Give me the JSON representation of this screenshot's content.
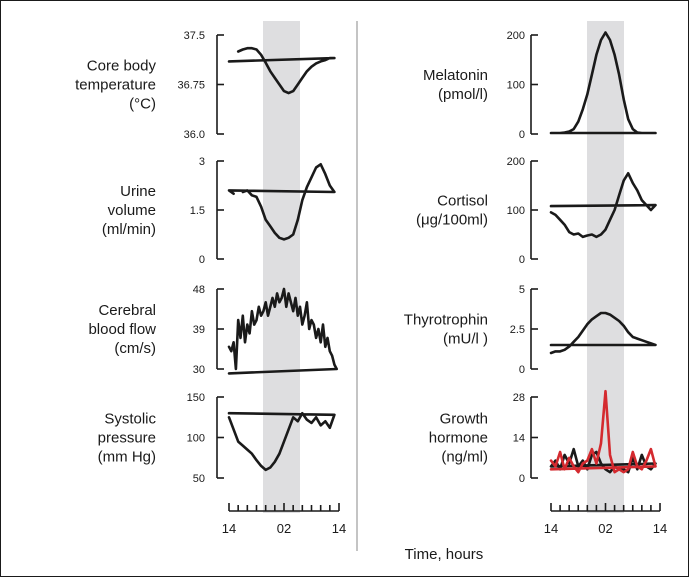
{
  "figure": {
    "time_axis_label": "Time, hours",
    "night_band": [
      22,
      6
    ],
    "colors": {
      "line": "#1a1a1a",
      "band": "#dedee0",
      "red": "#d42a2f"
    }
  },
  "chart_data": [
    {
      "type": "line",
      "label_lines": [
        "Core body",
        "temperature",
        "(°C)"
      ],
      "yticks": [
        "37.5",
        "36.75",
        "36.0"
      ],
      "ylim": [
        36.0,
        37.5
      ],
      "x": [
        16,
        17,
        18,
        19,
        20,
        21,
        22,
        23,
        0,
        1,
        2,
        3,
        4,
        5,
        6,
        7,
        8,
        9,
        10,
        11,
        12,
        13,
        14,
        15
      ],
      "series": [
        {
          "color": "#1a1a1a",
          "values": [
            37.25,
            37.28,
            37.3,
            37.3,
            37.28,
            37.2,
            37.08,
            36.95,
            36.85,
            36.75,
            36.65,
            36.62,
            36.65,
            36.75,
            36.85,
            36.95,
            37.02,
            37.07,
            37.1,
            37.12,
            37.15,
            37.15,
            37.1,
            null
          ]
        }
      ]
    },
    {
      "type": "line",
      "label_lines": [
        "Urine",
        "volume",
        "(ml/min)"
      ],
      "yticks": [
        "3",
        "1.5",
        "0"
      ],
      "ylim": [
        0,
        3
      ],
      "x": [
        17,
        18,
        19,
        20,
        21,
        22,
        23,
        0,
        1,
        2,
        3,
        4,
        5,
        6,
        7,
        8,
        9,
        10,
        11,
        12,
        13,
        14,
        15
      ],
      "series": [
        {
          "color": "#1a1a1a",
          "values": [
            2.05,
            2.1,
            1.95,
            1.9,
            1.6,
            1.2,
            1.0,
            0.8,
            0.65,
            0.6,
            0.65,
            0.75,
            1.2,
            1.8,
            2.2,
            2.5,
            2.8,
            2.9,
            2.6,
            2.25,
            2.05,
            2.1,
            2.0
          ]
        }
      ]
    },
    {
      "type": "line",
      "label_lines": [
        "Cerebral",
        "blood flow",
        "(cm/s)"
      ],
      "yticks": [
        "48",
        "39",
        "30"
      ],
      "ylim": [
        30,
        48
      ],
      "x": [
        14,
        14.5,
        15,
        15.5,
        16,
        16.5,
        17,
        17.5,
        18,
        18.5,
        19,
        19.5,
        20,
        20.5,
        21,
        21.5,
        22,
        22.5,
        23,
        23.5,
        0,
        0.5,
        1,
        1.5,
        2,
        2.5,
        3,
        3.5,
        4,
        4.5,
        5,
        5.5,
        6,
        6.5,
        7,
        7.5,
        8,
        8.5,
        9,
        9.5,
        10,
        10.5,
        11,
        11.5,
        12,
        12.5,
        13,
        13.5,
        14
      ],
      "series": [
        {
          "color": "#1a1a1a",
          "values": [
            35,
            34,
            36,
            30,
            41,
            37,
            42,
            36,
            40,
            38,
            43,
            40,
            41,
            44,
            42,
            43,
            45,
            42,
            44,
            46,
            44,
            47,
            45,
            46,
            48,
            44,
            47,
            45,
            43,
            46,
            42,
            44,
            40,
            42,
            45,
            39,
            41,
            40,
            37,
            39,
            36,
            40,
            35,
            37,
            34,
            33,
            31,
            30,
            29
          ]
        }
      ]
    },
    {
      "type": "line",
      "label_lines": [
        "Systolic",
        "pressure",
        "(mm Hg)"
      ],
      "yticks": [
        "150",
        "100",
        "50"
      ],
      "ylim": [
        50,
        150
      ],
      "x": [
        14,
        15,
        16,
        17,
        18,
        19,
        20,
        21,
        22,
        23,
        0,
        1,
        2,
        3,
        4,
        5,
        6,
        7,
        8,
        9,
        10,
        11,
        12,
        13,
        14
      ],
      "series": [
        {
          "color": "#1a1a1a",
          "values": [
            125,
            110,
            95,
            90,
            85,
            80,
            72,
            65,
            60,
            63,
            70,
            80,
            95,
            110,
            125,
            120,
            130,
            122,
            118,
            125,
            115,
            120,
            112,
            128,
            130
          ]
        }
      ]
    },
    {
      "type": "line",
      "label_lines": [
        "Melatonin",
        "(pmol/l)"
      ],
      "yticks": [
        "200",
        "100",
        "0"
      ],
      "ylim": [
        0,
        200
      ],
      "x": [
        14,
        15,
        16,
        17,
        18,
        19,
        20,
        21,
        22,
        23,
        0,
        1,
        2,
        3,
        4,
        5,
        6,
        7,
        8,
        9,
        10,
        11,
        12,
        13,
        14
      ],
      "series": [
        {
          "color": "#1a1a1a",
          "values": [
            2,
            2,
            2,
            3,
            5,
            10,
            25,
            50,
            80,
            120,
            160,
            190,
            205,
            190,
            160,
            120,
            70,
            30,
            10,
            3,
            2,
            2,
            2,
            2,
            2
          ]
        }
      ]
    },
    {
      "type": "line",
      "label_lines": [
        "Cortisol",
        "(μg/100ml)"
      ],
      "yticks": [
        "200",
        "100",
        "0"
      ],
      "ylim": [
        0,
        200
      ],
      "x": [
        14,
        15,
        16,
        17,
        18,
        19,
        20,
        21,
        22,
        23,
        0,
        1,
        2,
        3,
        4,
        5,
        6,
        7,
        8,
        9,
        10,
        11,
        12,
        13,
        14
      ],
      "series": [
        {
          "color": "#1a1a1a",
          "values": [
            95,
            90,
            80,
            70,
            55,
            50,
            52,
            45,
            48,
            50,
            45,
            50,
            60,
            80,
            100,
            130,
            160,
            175,
            155,
            140,
            120,
            110,
            100,
            110,
            108
          ]
        }
      ]
    },
    {
      "type": "line",
      "label_lines": [
        "Thyrotrophin",
        "(mU/l )"
      ],
      "yticks": [
        "5",
        "2.5",
        "0"
      ],
      "ylim": [
        0,
        5
      ],
      "x": [
        14,
        15,
        16,
        17,
        18,
        19,
        20,
        21,
        22,
        23,
        0,
        1,
        2,
        3,
        4,
        5,
        6,
        7,
        8,
        9,
        10,
        11,
        12,
        13,
        14
      ],
      "series": [
        {
          "color": "#1a1a1a",
          "values": [
            1.0,
            1.1,
            1.1,
            1.2,
            1.4,
            1.7,
            2.0,
            2.4,
            2.8,
            3.1,
            3.3,
            3.5,
            3.5,
            3.4,
            3.2,
            3.0,
            2.7,
            2.3,
            2.0,
            1.9,
            1.8,
            1.7,
            1.6,
            1.5,
            1.5
          ]
        }
      ]
    },
    {
      "type": "line",
      "label_lines": [
        "Growth",
        "hormone",
        "(ng/ml)"
      ],
      "yticks": [
        "28",
        "14",
        "0"
      ],
      "ylim": [
        0,
        28
      ],
      "x": [
        14,
        15,
        16,
        17,
        18,
        19,
        20,
        21,
        22,
        23,
        0,
        1,
        2,
        3,
        4,
        5,
        6,
        7,
        8,
        9,
        10,
        11,
        12,
        13,
        14
      ],
      "series": [
        {
          "color": "#1a1a1a",
          "values": [
            4,
            6,
            3,
            8,
            5,
            10,
            4,
            6,
            3,
            8,
            9,
            5,
            3,
            2,
            4,
            3,
            3,
            2,
            7,
            3,
            8,
            4,
            3,
            5,
            4
          ]
        },
        {
          "color": "#d42a2f",
          "values": [
            6,
            4,
            9,
            3,
            7,
            4,
            2,
            5,
            6,
            10,
            5,
            12,
            30,
            8,
            2,
            3,
            2,
            3,
            9,
            4,
            3,
            6,
            10,
            4,
            3
          ]
        }
      ]
    }
  ]
}
